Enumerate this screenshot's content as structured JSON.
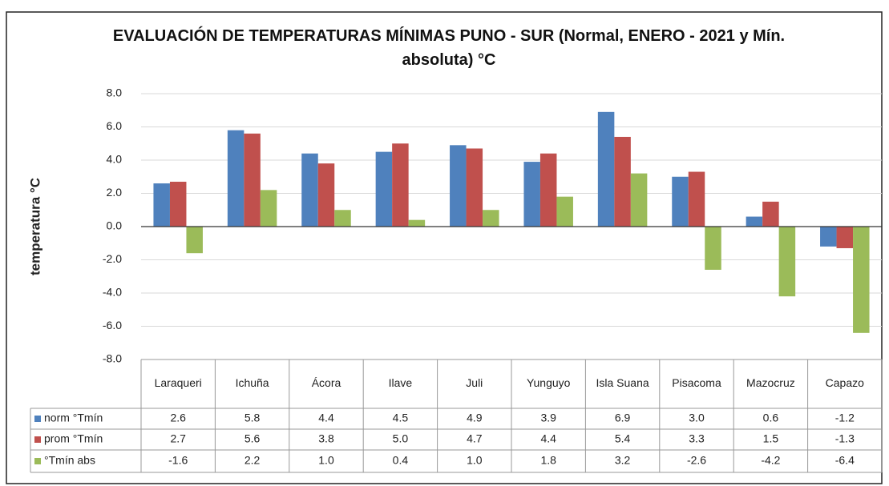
{
  "chart_data": {
    "type": "bar",
    "title": "EVALUACIÓN DE TEMPERATURAS MÍNIMAS PUNO - SUR  (Normal, ENERO - 2021 y Mín. absoluta) °C",
    "y_label": "temperatura °C",
    "categories": [
      "Laraqueri",
      "Ichuña",
      "Ácora",
      "Ilave",
      "Juli",
      "Yunguyo",
      "Isla Suana",
      "Pisacoma",
      "Mazocruz",
      "Capazo"
    ],
    "series": [
      {
        "name": "norm °Tmín",
        "color": "#4f81bd",
        "values": [
          2.6,
          5.8,
          4.4,
          4.5,
          4.9,
          3.9,
          6.9,
          3.0,
          0.6,
          -1.2
        ],
        "value_labels": [
          "2.6",
          "5.8",
          "4.4",
          "4.5",
          "4.9",
          "3.9",
          "6.9",
          "3.0",
          "0.6",
          "-1.2"
        ]
      },
      {
        "name": "prom °Tmín",
        "color": "#c0504d",
        "values": [
          2.7,
          5.6,
          3.8,
          5.0,
          4.7,
          4.4,
          5.4,
          3.3,
          1.5,
          -1.3
        ],
        "value_labels": [
          "2.7",
          "5.6",
          "3.8",
          "5.0",
          "4.7",
          "4.4",
          "5.4",
          "3.3",
          "1.5",
          "-1.3"
        ]
      },
      {
        "name": "°Tmín abs",
        "color": "#9bbb59",
        "values": [
          -1.6,
          2.2,
          1.0,
          0.4,
          1.0,
          1.8,
          3.2,
          -2.6,
          -4.2,
          -6.4
        ],
        "value_labels": [
          "-1.6",
          "2.2",
          "1.0",
          "0.4",
          "1.0",
          "1.8",
          "3.2",
          "-2.6",
          "-4.2",
          "-6.4"
        ]
      }
    ],
    "ylim": [
      -8,
      8
    ],
    "yticks": [
      {
        "value": -8,
        "label": "-8.0"
      },
      {
        "value": -6,
        "label": "-6.0"
      },
      {
        "value": -4,
        "label": "-4.0"
      },
      {
        "value": -2,
        "label": "-2.0"
      },
      {
        "value": 0,
        "label": "0.0"
      },
      {
        "value": 2,
        "label": "2.0"
      },
      {
        "value": 4,
        "label": "4.0"
      },
      {
        "value": 6,
        "label": "6.0"
      },
      {
        "value": 8,
        "label": "8.0"
      }
    ],
    "grid": true
  }
}
